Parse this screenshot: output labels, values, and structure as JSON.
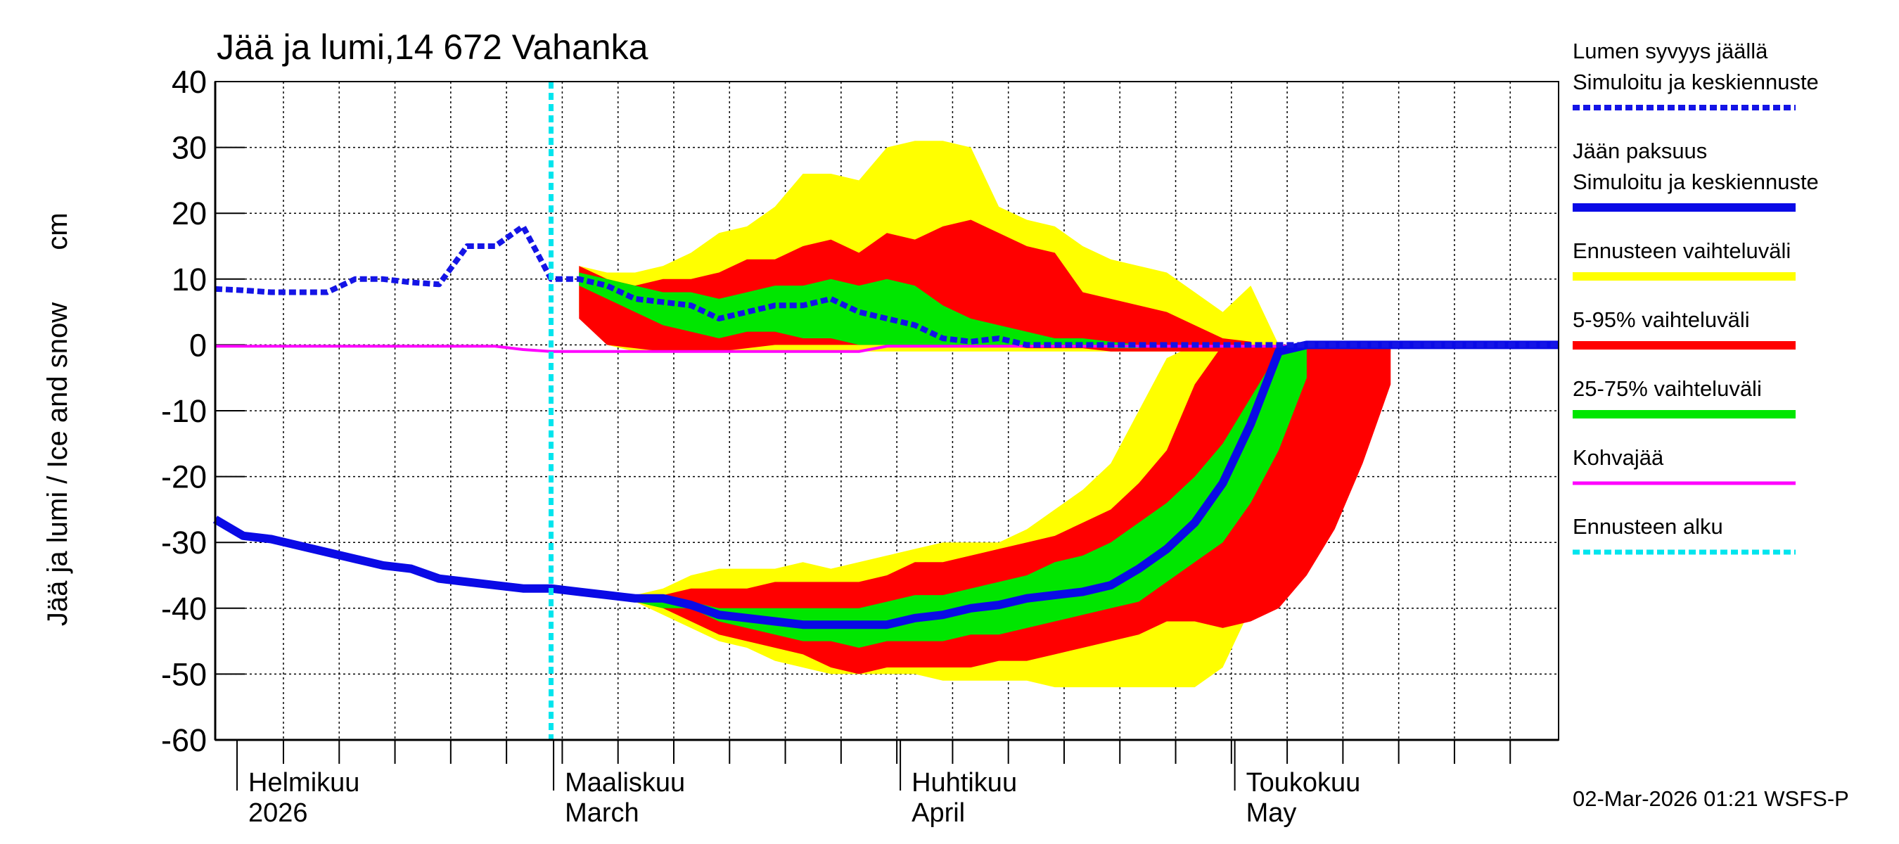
{
  "chart_data": {
    "type": "band-line",
    "title": "Jää ja lumi,14 672 Vahanka",
    "ylabel": "Jää ja lumi / Ice and snow",
    "yunit": "cm",
    "ylim": [
      -60,
      40
    ],
    "yticks": [
      -60,
      -50,
      -40,
      -30,
      -20,
      -10,
      0,
      10,
      20,
      30,
      40
    ],
    "grid": true,
    "x_labels": [
      [
        "Helmikuu",
        "2026"
      ],
      [
        "Maaliskuu",
        "March"
      ],
      [
        "Huhtikuu",
        "April"
      ],
      [
        "Toukokuu",
        "May"
      ]
    ],
    "timestamp": "02-Mar-2026 01:21 WSFS-P",
    "series": [
      {
        "name": [
          "Lumen syvyys jäällä",
          "Simuloitu ja keskiennuste"
        ],
        "color": "#1414e6",
        "dashed": true,
        "values": [
          8.5,
          8.3,
          8,
          8,
          8,
          10,
          10,
          9.5,
          9.2,
          15,
          15,
          18,
          10,
          10,
          9,
          7,
          6.5,
          6,
          4,
          5,
          6,
          6,
          7,
          5,
          4,
          3,
          1,
          0.5,
          1,
          0,
          0,
          0,
          0,
          0,
          0,
          0,
          0,
          0,
          0,
          0,
          0,
          0,
          0,
          0,
          0,
          0,
          0,
          0,
          0
        ]
      },
      {
        "name": [
          "Jään paksuus",
          "Simuloitu ja keskiennuste"
        ],
        "color": "#0a0ae6",
        "dashed": false,
        "values": [
          -26.5,
          -29,
          -29.5,
          -30.5,
          -31.5,
          -32.5,
          -33.5,
          -34,
          -35.5,
          -36,
          -36.5,
          -37,
          -37,
          -37.5,
          -38,
          -38.5,
          -38.5,
          -39.5,
          -41,
          -41.5,
          -42,
          -42.5,
          -42.5,
          -42.5,
          -42.5,
          -41.5,
          -41,
          -40,
          -39.5,
          -38.5,
          -38,
          -37.5,
          -36.5,
          -34,
          -31,
          -27,
          -21,
          -12,
          -1,
          0,
          0,
          0,
          0,
          0,
          0,
          0,
          0,
          0,
          0
        ]
      },
      {
        "name": [
          "Kohvajää"
        ],
        "color": "#ff00ff",
        "dashed": false,
        "values": [
          -0.2,
          -0.2,
          -0.2,
          -0.2,
          -0.2,
          -0.2,
          -0.2,
          -0.2,
          -0.2,
          -0.2,
          -0.2,
          -0.7,
          -1,
          -1,
          -1,
          -1,
          -1,
          -1,
          -1,
          -1,
          -1,
          -1,
          -1,
          -1,
          -0.2,
          -0.2,
          -0.2,
          -0.2,
          -0.2,
          -0.2,
          -0.2,
          -0.2,
          -0.2,
          -0.2,
          -0.2,
          -0.2,
          -0.2,
          -0.2,
          -0.2,
          -0.2,
          -0.2,
          -0.2,
          -0.2,
          -0.2,
          -0.2,
          -0.2,
          -0.2,
          -0.2,
          -0.2
        ]
      }
    ],
    "bands": [
      {
        "name": "Ennusteen vaihteluväli",
        "color": "#ffff00",
        "ranges": [
          {
            "high": [
              null,
              null,
              null,
              null,
              null,
              null,
              null,
              null,
              null,
              null,
              null,
              null,
              null,
              12,
              11,
              11,
              12,
              14,
              17,
              18,
              21,
              26,
              26,
              25,
              30,
              31,
              31,
              30,
              21,
              19,
              18,
              15,
              13,
              12,
              11,
              8,
              5,
              9,
              0,
              null,
              null,
              null,
              null,
              null,
              null,
              null,
              null,
              null,
              null
            ],
            "low": [
              null,
              null,
              null,
              null,
              null,
              null,
              null,
              null,
              null,
              null,
              null,
              null,
              null,
              5,
              0,
              -1,
              -1,
              -1,
              -1,
              -1,
              -1,
              -1,
              -1,
              -1,
              -1,
              -1,
              -1,
              -1,
              -1,
              -1,
              -1,
              -1,
              -1,
              -1,
              -1,
              -1,
              -1,
              -1,
              -1,
              null,
              null,
              null,
              null,
              null,
              null,
              null,
              null,
              null,
              null
            ]
          },
          {
            "high": [
              null,
              null,
              null,
              null,
              null,
              null,
              null,
              null,
              null,
              null,
              null,
              null,
              null,
              null,
              null,
              -38,
              -37,
              -35,
              -34,
              -34,
              -34,
              -33,
              -34,
              -33,
              -32,
              -31,
              -30,
              -30,
              -30,
              -28,
              -25,
              -22,
              -18,
              -10,
              -2,
              0,
              0,
              0,
              0,
              0,
              0,
              0,
              0,
              null,
              null,
              null,
              null,
              null,
              null
            ],
            "low": [
              null,
              null,
              null,
              null,
              null,
              null,
              null,
              null,
              null,
              null,
              null,
              null,
              null,
              null,
              null,
              -39,
              -41,
              -43,
              -45,
              -46,
              -48,
              -49,
              -50,
              -50,
              -50,
              -50,
              -51,
              -51,
              -51,
              -51,
              -52,
              -52,
              -52,
              -52,
              -52,
              -52,
              -49,
              -40,
              -38,
              -31,
              -22,
              -12,
              -1,
              null,
              null,
              null,
              null,
              null,
              null
            ]
          }
        ]
      },
      {
        "name": "5-95% vaihteluväli",
        "color": "#ff0000",
        "ranges": [
          {
            "high": [
              null,
              null,
              null,
              null,
              null,
              null,
              null,
              null,
              null,
              null,
              null,
              null,
              null,
              12,
              10,
              9,
              10,
              10,
              11,
              13,
              13,
              15,
              16,
              14,
              17,
              16,
              18,
              19,
              17,
              15,
              14,
              8,
              7,
              6,
              5,
              3,
              1,
              0.5,
              null,
              null,
              null,
              null,
              null,
              null,
              null,
              null,
              null,
              null,
              null
            ],
            "low": [
              null,
              null,
              null,
              null,
              null,
              null,
              null,
              null,
              null,
              null,
              null,
              null,
              null,
              4,
              0,
              -0.5,
              -1,
              -1,
              -1,
              -0.5,
              0,
              0,
              0,
              0,
              0,
              0,
              0,
              0,
              0,
              -0.5,
              -0.5,
              -0.5,
              -1,
              -1,
              -1,
              -1,
              -1,
              -1,
              null,
              null,
              null,
              null,
              null,
              null,
              null,
              null,
              null,
              null,
              null
            ]
          },
          {
            "high": [
              null,
              null,
              null,
              null,
              null,
              null,
              null,
              null,
              null,
              null,
              null,
              null,
              null,
              null,
              null,
              -38,
              -38,
              -37,
              -37,
              -37,
              -36,
              -36,
              -36,
              -36,
              -35,
              -33,
              -33,
              -32,
              -31,
              -30,
              -29,
              -27,
              -25,
              -21,
              -16,
              -6,
              0,
              0,
              0,
              0,
              0,
              0,
              0,
              null,
              null,
              null,
              null,
              null,
              null
            ],
            "low": [
              null,
              null,
              null,
              null,
              null,
              null,
              null,
              null,
              null,
              null,
              null,
              null,
              null,
              null,
              null,
              -39,
              -40,
              -42,
              -44,
              -45,
              -46,
              -47,
              -49,
              -50,
              -49,
              -49,
              -49,
              -49,
              -48,
              -48,
              -47,
              -46,
              -45,
              -44,
              -42,
              -42,
              -43,
              -42,
              -40,
              -35,
              -28,
              -18,
              -6,
              null,
              null,
              null,
              null,
              null,
              null
            ]
          }
        ]
      },
      {
        "name": "25-75% vaihteluväli",
        "color": "#00e600",
        "ranges": [
          {
            "high": [
              null,
              null,
              null,
              null,
              null,
              null,
              null,
              null,
              null,
              null,
              null,
              null,
              null,
              11,
              10,
              9,
              8,
              8,
              7,
              8,
              9,
              9,
              10,
              9,
              10,
              9,
              6,
              4,
              3,
              2,
              1,
              1,
              0.5,
              0,
              null,
              null,
              null,
              null,
              null,
              null,
              null,
              null,
              null,
              null,
              null,
              null,
              null,
              null,
              null
            ],
            "low": [
              null,
              null,
              null,
              null,
              null,
              null,
              null,
              null,
              null,
              null,
              null,
              null,
              null,
              9,
              7,
              5,
              3,
              2,
              1,
              2,
              2,
              1,
              1,
              0,
              0,
              0,
              0,
              0,
              0,
              0,
              0,
              0,
              -0.5,
              -0.5,
              null,
              null,
              null,
              null,
              null,
              null,
              null,
              null,
              null,
              null,
              null,
              null,
              null,
              null,
              null
            ]
          },
          {
            "high": [
              null,
              null,
              null,
              null,
              null,
              null,
              null,
              null,
              null,
              null,
              null,
              null,
              null,
              null,
              null,
              -38,
              -39,
              -39,
              -40,
              -40,
              -40,
              -40,
              -40,
              -40,
              -39,
              -38,
              -38,
              -37,
              -36,
              -35,
              -33,
              -32,
              -30,
              -27,
              -24,
              -20,
              -15,
              -8,
              -1,
              0,
              null,
              null,
              null,
              null,
              null,
              null,
              null,
              null,
              null
            ],
            "low": [
              null,
              null,
              null,
              null,
              null,
              null,
              null,
              null,
              null,
              null,
              null,
              null,
              null,
              null,
              null,
              -39,
              -40,
              -40,
              -42,
              -43,
              -44,
              -45,
              -45,
              -46,
              -45,
              -45,
              -45,
              -44,
              -44,
              -43,
              -42,
              -41,
              -40,
              -39,
              -36,
              -33,
              -30,
              -24,
              -16,
              -5,
              null,
              null,
              null,
              null,
              null,
              null,
              null,
              null,
              null
            ]
          }
        ]
      }
    ],
    "forecast_start": {
      "name": "Ennusteen alku",
      "color": "#00e5ee",
      "index": 12
    }
  }
}
